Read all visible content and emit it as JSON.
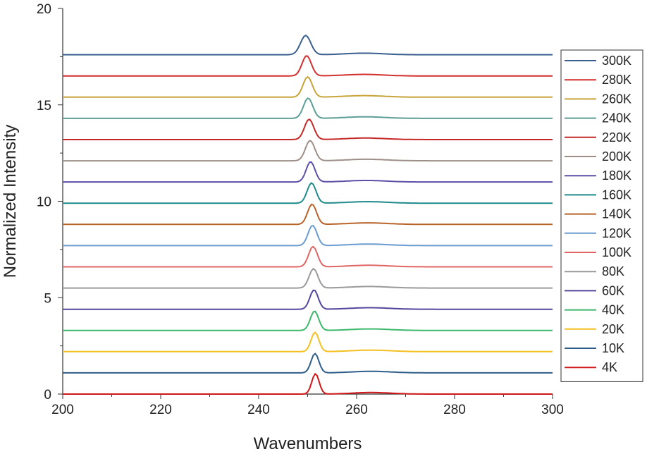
{
  "chart_data": {
    "type": "line",
    "xlabel": "Wavenumbers",
    "ylabel": "Normalized Intensity",
    "xlim": [
      200,
      300
    ],
    "ylim": [
      0,
      20
    ],
    "x_ticks": [
      200,
      220,
      240,
      260,
      280,
      300
    ],
    "y_ticks": [
      0,
      5,
      10,
      15,
      20
    ],
    "grid": false,
    "legend_position": "right",
    "series": [
      {
        "name": "300K",
        "color": "#3a5f8f",
        "offset": 17.6,
        "peak_x": 249.6,
        "peak_height": 1.0,
        "peak_sigma": 1.05,
        "secondary_x": 261.5,
        "secondary_height": 0.08
      },
      {
        "name": "280K",
        "color": "#d32f2f",
        "offset": 16.5,
        "peak_x": 249.8,
        "peak_height": 1.05,
        "peak_sigma": 0.95,
        "secondary_x": 261.5,
        "secondary_height": 0.08
      },
      {
        "name": "260K",
        "color": "#c9a43a",
        "offset": 15.4,
        "peak_x": 250.0,
        "peak_height": 1.05,
        "peak_sigma": 0.95,
        "secondary_x": 261.5,
        "secondary_height": 0.08
      },
      {
        "name": "240K",
        "color": "#5b9e96",
        "offset": 14.3,
        "peak_x": 250.1,
        "peak_height": 1.05,
        "peak_sigma": 0.95,
        "secondary_x": 261.7,
        "secondary_height": 0.08
      },
      {
        "name": "220K",
        "color": "#c62828",
        "offset": 13.2,
        "peak_x": 250.3,
        "peak_height": 1.05,
        "peak_sigma": 0.95,
        "secondary_x": 261.8,
        "secondary_height": 0.08
      },
      {
        "name": "200K",
        "color": "#9e8e88",
        "offset": 12.1,
        "peak_x": 250.5,
        "peak_height": 1.05,
        "peak_sigma": 0.95,
        "secondary_x": 262.0,
        "secondary_height": 0.08
      },
      {
        "name": "180K",
        "color": "#5c4fa8",
        "offset": 11.0,
        "peak_x": 250.6,
        "peak_height": 1.05,
        "peak_sigma": 0.9,
        "secondary_x": 262.0,
        "secondary_height": 0.08
      },
      {
        "name": "160K",
        "color": "#1f8a8a",
        "offset": 9.9,
        "peak_x": 250.8,
        "peak_height": 1.05,
        "peak_sigma": 0.9,
        "secondary_x": 262.2,
        "secondary_height": 0.08
      },
      {
        "name": "140K",
        "color": "#b8632a",
        "offset": 8.8,
        "peak_x": 250.9,
        "peak_height": 1.05,
        "peak_sigma": 0.9,
        "secondary_x": 262.3,
        "secondary_height": 0.08
      },
      {
        "name": "120K",
        "color": "#6a9bd1",
        "offset": 7.7,
        "peak_x": 251.0,
        "peak_height": 1.05,
        "peak_sigma": 0.9,
        "secondary_x": 262.4,
        "secondary_height": 0.08
      },
      {
        "name": "100K",
        "color": "#e06666",
        "offset": 6.6,
        "peak_x": 251.1,
        "peak_height": 1.05,
        "peak_sigma": 0.9,
        "secondary_x": 262.5,
        "secondary_height": 0.08
      },
      {
        "name": "80K",
        "color": "#9a9a9a",
        "offset": 5.5,
        "peak_x": 251.2,
        "peak_height": 1.0,
        "peak_sigma": 0.9,
        "secondary_x": 262.6,
        "secondary_height": 0.08
      },
      {
        "name": "60K",
        "color": "#55459e",
        "offset": 4.4,
        "peak_x": 251.3,
        "peak_height": 1.0,
        "peak_sigma": 0.85,
        "secondary_x": 262.7,
        "secondary_height": 0.08
      },
      {
        "name": "40K",
        "color": "#3cb86a",
        "offset": 3.3,
        "peak_x": 251.4,
        "peak_height": 1.0,
        "peak_sigma": 0.85,
        "secondary_x": 262.8,
        "secondary_height": 0.08
      },
      {
        "name": "20K",
        "color": "#f4bf1f",
        "offset": 2.2,
        "peak_x": 251.5,
        "peak_height": 1.0,
        "peak_sigma": 0.8,
        "secondary_x": 262.9,
        "secondary_height": 0.08
      },
      {
        "name": "10K",
        "color": "#2f5d8a",
        "offset": 1.1,
        "peak_x": 251.5,
        "peak_height": 1.0,
        "peak_sigma": 0.8,
        "secondary_x": 263.0,
        "secondary_height": 0.08
      },
      {
        "name": "4K",
        "color": "#d01818",
        "offset": 0.0,
        "peak_x": 251.6,
        "peak_height": 1.05,
        "peak_sigma": 0.75,
        "secondary_x": 263.0,
        "secondary_height": 0.08
      }
    ]
  }
}
